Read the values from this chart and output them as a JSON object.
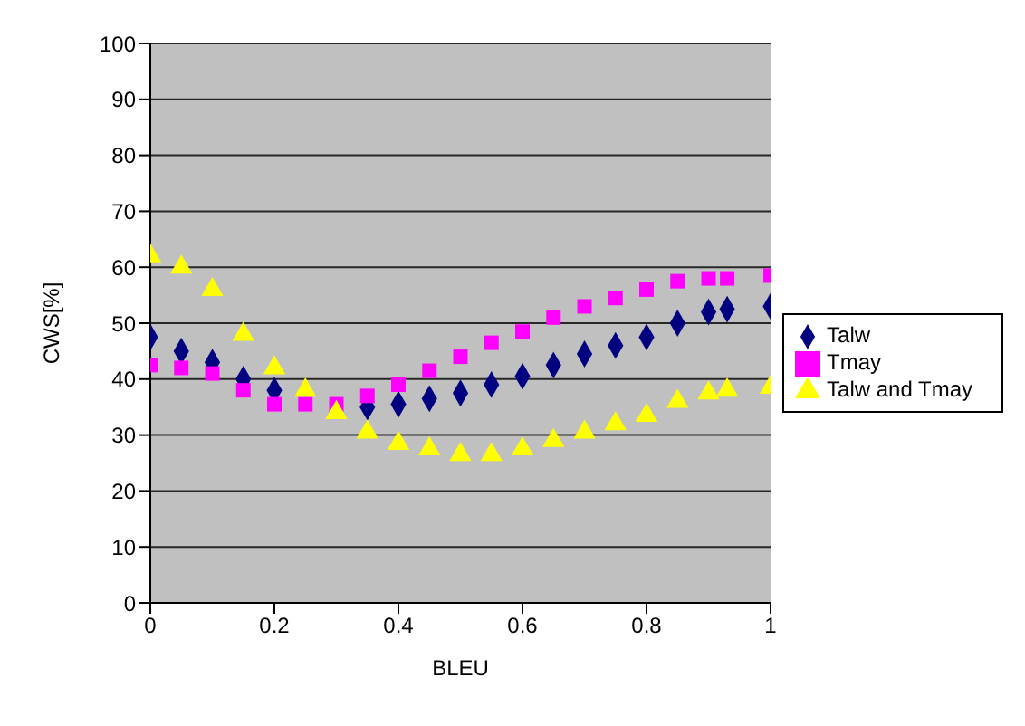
{
  "chart_data": {
    "type": "scatter",
    "xlabel": "BLEU",
    "ylabel": "CWS[%]",
    "xlim": [
      0,
      1
    ],
    "xticks": [
      0,
      0.2,
      0.4,
      0.6,
      0.8,
      1
    ],
    "ylim": [
      0,
      100
    ],
    "yticks": [
      0,
      10,
      20,
      30,
      40,
      50,
      60,
      70,
      80,
      90,
      100
    ],
    "grid": "y",
    "legend": "right",
    "x": [
      0,
      0.05,
      0.1,
      0.15,
      0.2,
      0.25,
      0.3,
      0.35,
      0.4,
      0.45,
      0.5,
      0.55,
      0.6,
      0.65,
      0.7,
      0.75,
      0.8,
      0.85,
      0.9,
      0.93,
      1
    ],
    "series": [
      {
        "name": "Talw",
        "color": "#000080",
        "marker": "diamond",
        "values": [
          47.5,
          45,
          43,
          40,
          38,
          null,
          null,
          35,
          35.5,
          36.5,
          37.5,
          39,
          40.5,
          42.5,
          44.5,
          46,
          47.5,
          50,
          52,
          52.5,
          53
        ]
      },
      {
        "name": "Tmay",
        "color": "#ff00ff",
        "marker": "square",
        "values": [
          42.5,
          42,
          41,
          38,
          35.5,
          35.5,
          35.5,
          37,
          39,
          41.5,
          44,
          46.5,
          48.5,
          51,
          53,
          54.5,
          56,
          57.5,
          58,
          58,
          58.5
        ]
      },
      {
        "name": "Talw and Tmay",
        "color": "#ffff00",
        "marker": "triangle",
        "values": [
          62,
          60,
          56,
          48,
          42,
          38,
          34,
          30.5,
          28.5,
          27.5,
          26.5,
          26.5,
          27.5,
          29,
          30.5,
          32,
          33.5,
          36,
          37.5,
          38,
          38.5
        ]
      }
    ]
  }
}
